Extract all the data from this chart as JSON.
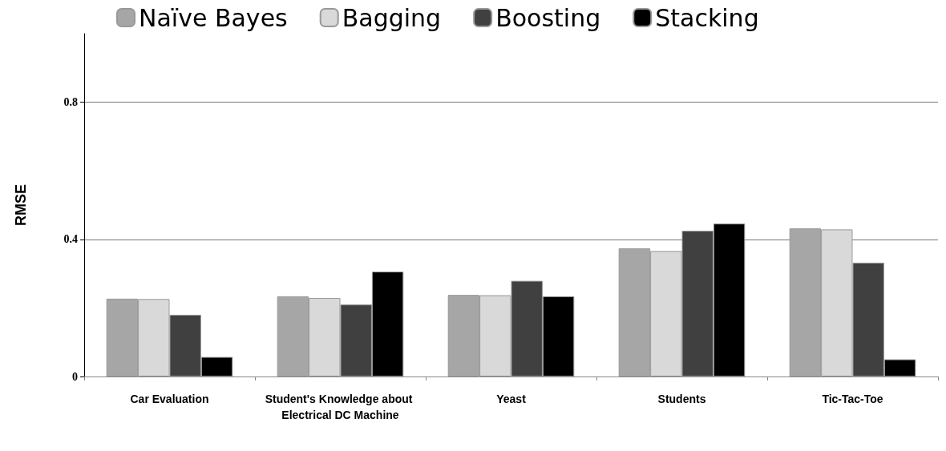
{
  "chart_data": {
    "type": "bar",
    "ylabel": "RMSE",
    "categories": [
      "Car Evaluation",
      "Student's Knowledge about Electrical DC Machine",
      "Yeast",
      "Students",
      "Tic-Tac-Toe"
    ],
    "series": [
      {
        "name": "Naïve Bayes",
        "color": "#a6a6a6",
        "values": [
          0.227,
          0.234,
          0.238,
          0.374,
          0.432
        ]
      },
      {
        "name": "Bagging",
        "color": "#d9d9d9",
        "values": [
          0.226,
          0.229,
          0.237,
          0.366,
          0.429
        ]
      },
      {
        "name": "Boosting",
        "color": "#404040",
        "values": [
          0.18,
          0.21,
          0.279,
          0.425,
          0.332
        ]
      },
      {
        "name": "Stacking",
        "color": "#000000",
        "values": [
          0.057,
          0.306,
          0.234,
          0.446,
          0.05
        ]
      }
    ],
    "ylim": [
      0,
      1
    ],
    "yticks": [
      0,
      0.4,
      0.8
    ],
    "grid": "y",
    "legend": "top"
  }
}
